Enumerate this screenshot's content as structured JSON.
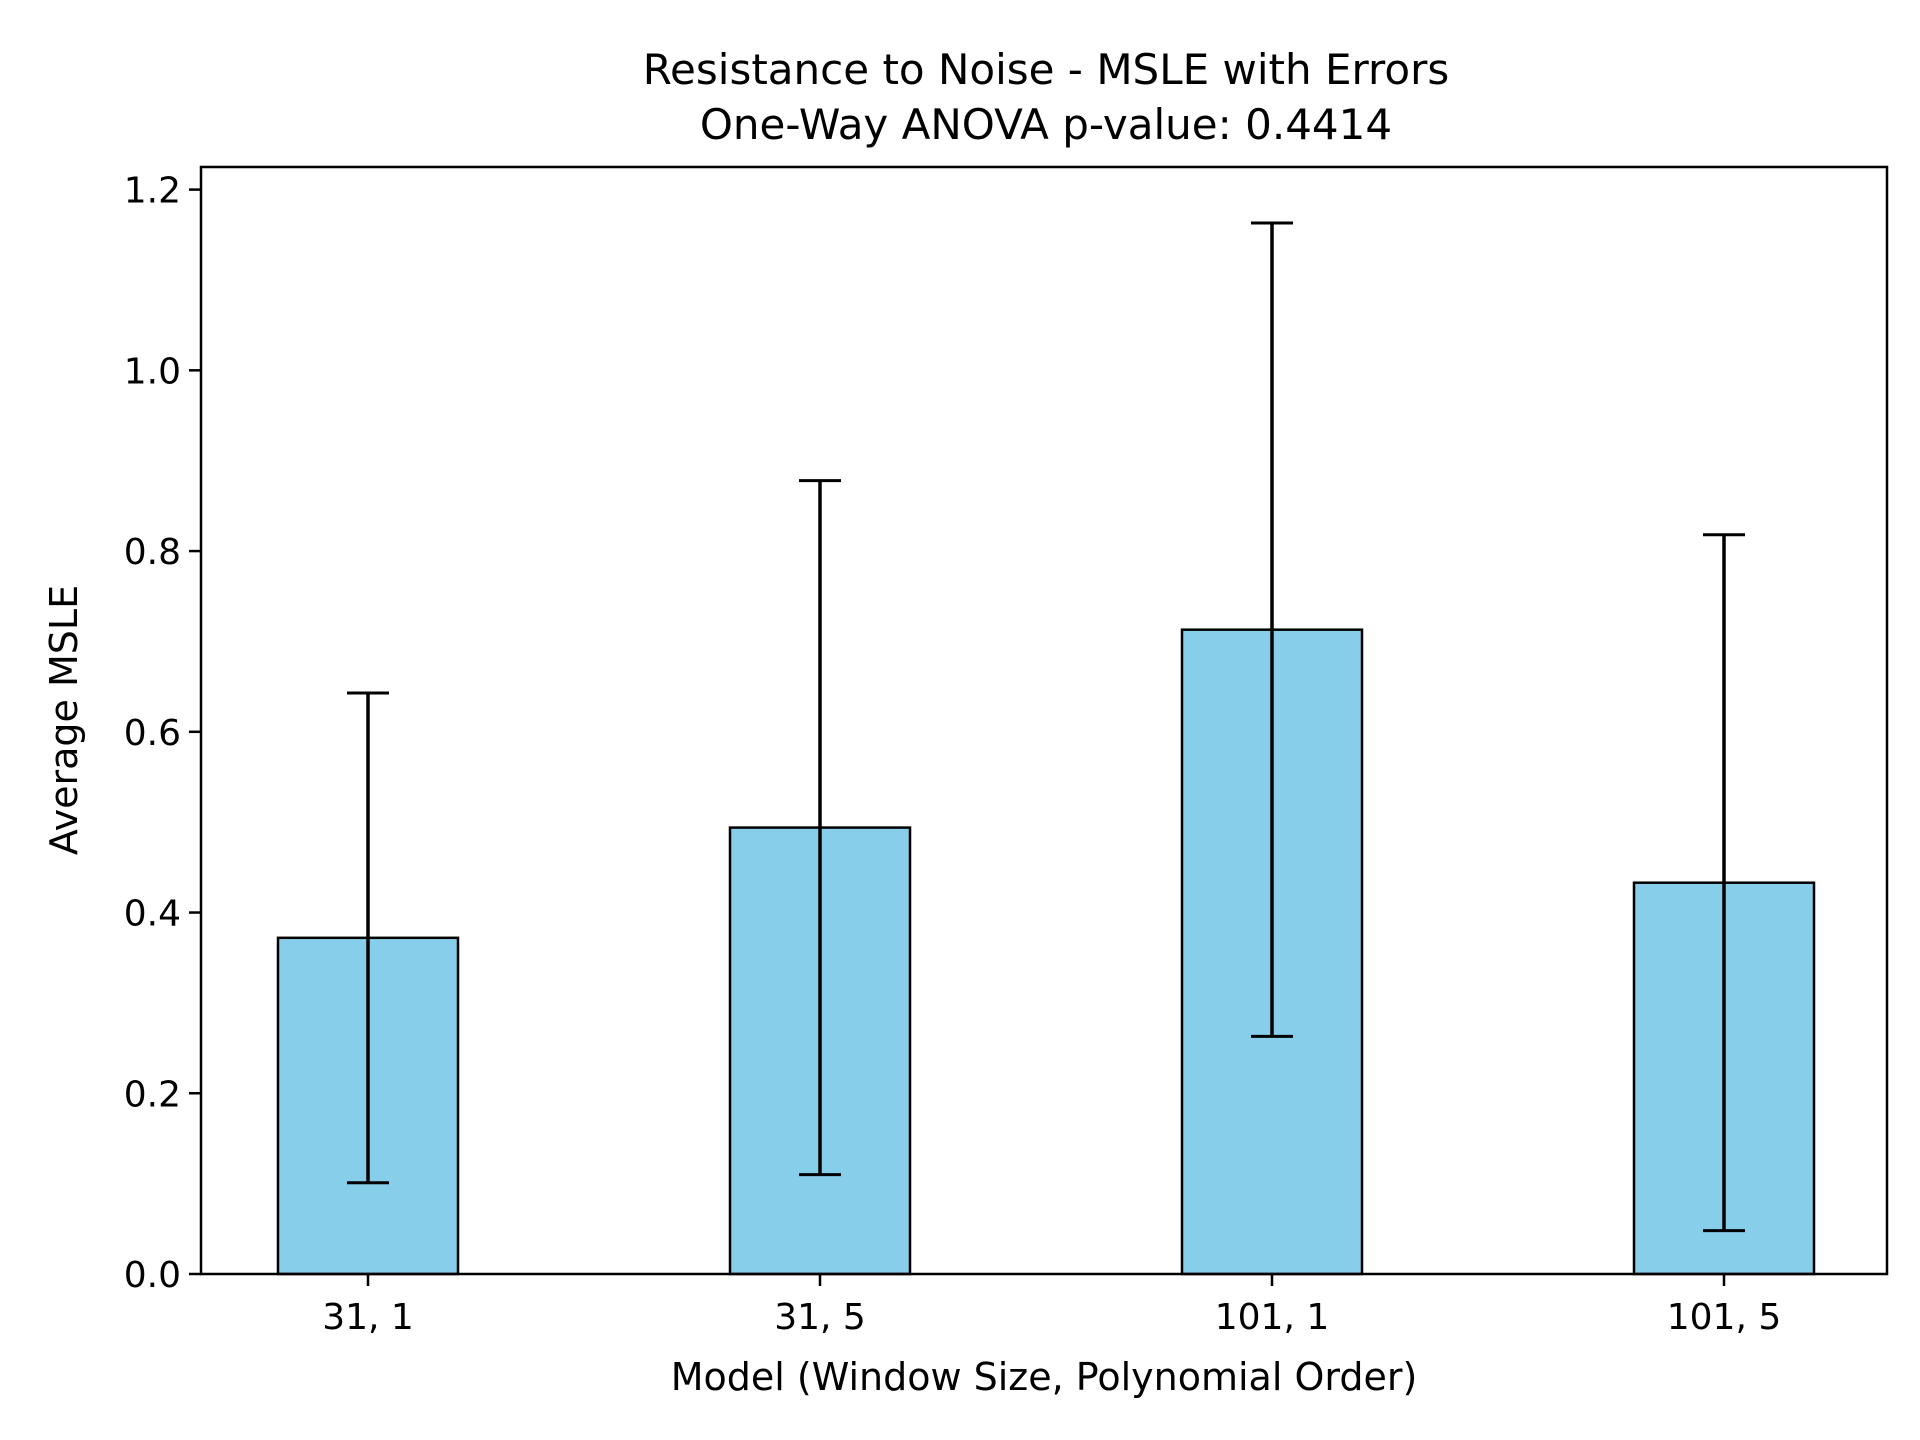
{
  "chart_data": {
    "type": "bar",
    "title": "Resistance to Noise - MSLE with Errors",
    "subtitle": "One-Way ANOVA p-value: 0.4414",
    "xlabel": "Model (Window Size, Polynomial Order)",
    "ylabel": "Average MSLE",
    "categories": [
      "31, 1",
      "31, 5",
      "101, 1",
      "101, 5"
    ],
    "values": [
      0.372,
      0.494,
      0.713,
      0.433
    ],
    "errors": [
      0.271,
      0.384,
      0.45,
      0.385
    ],
    "ylim": [
      0,
      1.225
    ],
    "yticks": [
      "0.0",
      "0.2",
      "0.4",
      "0.6",
      "0.8",
      "1.0",
      "1.2"
    ],
    "grid": false,
    "legend": "none",
    "bar_color": "#87CEEB",
    "edge_color": "#000000"
  }
}
